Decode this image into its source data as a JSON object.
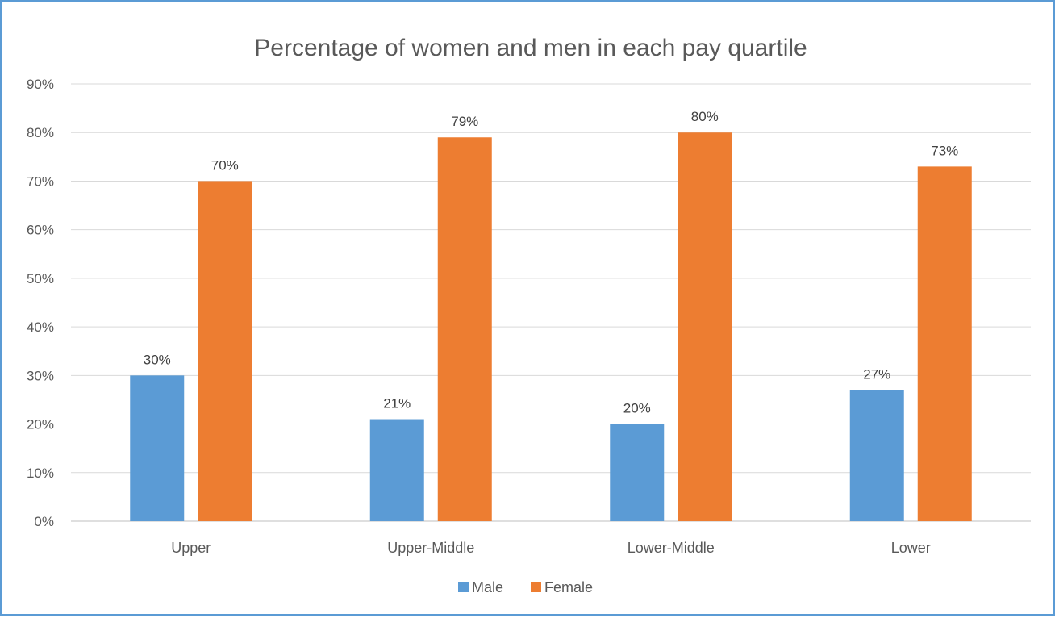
{
  "chart_data": {
    "type": "bar",
    "title": "Percentage of women and men in each pay quartile",
    "xlabel": "",
    "ylabel": "",
    "categories": [
      "Upper",
      "Upper-Middle",
      "Lower-Middle",
      "Lower"
    ],
    "series": [
      {
        "name": "Male",
        "color": "#5b9bd5",
        "values": [
          30,
          21,
          20,
          27
        ],
        "labels": [
          "30%",
          "21%",
          "20%",
          "27%"
        ]
      },
      {
        "name": "Female",
        "color": "#ed7d31",
        "values": [
          70,
          79,
          80,
          73
        ],
        "labels": [
          "70%",
          "79%",
          "80%",
          "73%"
        ]
      }
    ],
    "ylim": [
      0,
      90
    ],
    "yticks": [
      0,
      10,
      20,
      30,
      40,
      50,
      60,
      70,
      80,
      90
    ],
    "ytick_labels": [
      "0%",
      "10%",
      "20%",
      "30%",
      "40%",
      "50%",
      "60%",
      "70%",
      "80%",
      "90%"
    ],
    "grid": true,
    "legend_position": "bottom-center",
    "frame_color": "#5b9bd5"
  }
}
